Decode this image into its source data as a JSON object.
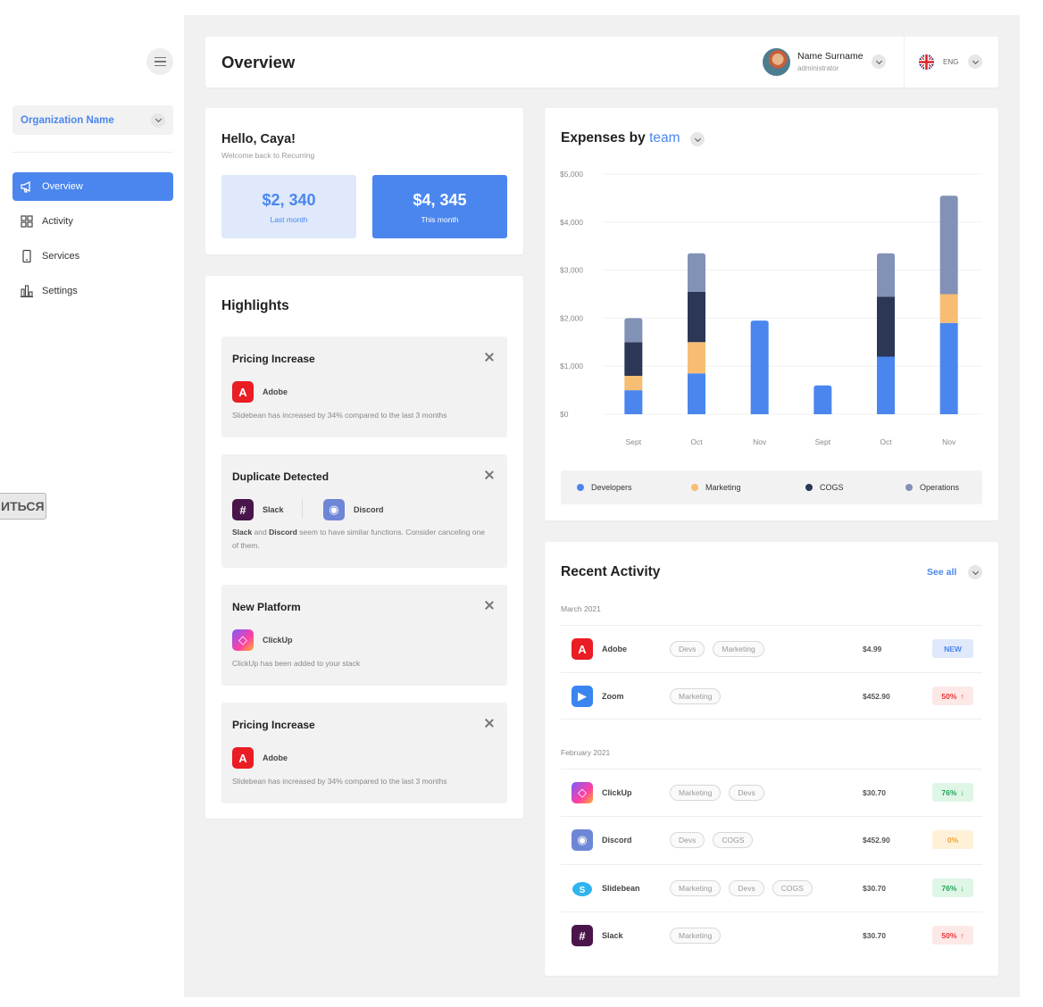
{
  "sidebar": {
    "org_name": "Organization Name",
    "items": [
      {
        "label": "Overview",
        "icon": "megaphone-icon",
        "active": true
      },
      {
        "label": "Activity",
        "icon": "grid-icon",
        "active": false
      },
      {
        "label": "Services",
        "icon": "tablet-icon",
        "active": false
      },
      {
        "label": "Settings",
        "icon": "bars-icon",
        "active": false
      }
    ],
    "ghost_button": "ИТЬСЯ"
  },
  "header": {
    "title": "Overview",
    "user_name": "Name Surname",
    "user_role": "administrator",
    "language": "ENG"
  },
  "hello": {
    "greeting": "Hello, Caya!",
    "subtitle": "Welcome back to Recurring",
    "last_value": "$2, 340",
    "last_label": "Last month",
    "this_value": "$4, 345",
    "this_label": "This month"
  },
  "highlights": {
    "title": "Highlights",
    "items": [
      {
        "title": "Pricing Increase",
        "app": "Adobe",
        "desc": "Slidebean has increased by 34% compared to the last 3 months"
      },
      {
        "title": "Duplicate Detected",
        "app": "Slack",
        "app2": "Discord",
        "desc_b1": "Slack",
        "desc_mid": " and ",
        "desc_b2": "Discord",
        "desc_rest": " seem to have similar functions. Consider canceling one of them."
      },
      {
        "title": "New Platform",
        "app": "ClickUp",
        "desc": "ClickUp has been added to your stack"
      },
      {
        "title": "Pricing Increase",
        "app": "Adobe",
        "desc": "Slidebean has increased by 34% compared to the last 3 months"
      }
    ]
  },
  "expenses": {
    "title_prefix": "Expenses by",
    "title_accent": "team"
  },
  "chart_data": {
    "type": "bar",
    "stacked": true,
    "categories": [
      "Sept",
      "Oct",
      "Nov",
      "Sept",
      "Oct",
      "Nov"
    ],
    "series": [
      {
        "name": "Developers",
        "color": "#4a86ee",
        "values": [
          500,
          850,
          1950,
          600,
          1200,
          1900
        ]
      },
      {
        "name": "Marketing",
        "color": "#f7bd72",
        "values": [
          300,
          650,
          0,
          0,
          0,
          600
        ]
      },
      {
        "name": "COGS",
        "color": "#2c3756",
        "values": [
          700,
          1050,
          0,
          0,
          1250,
          0
        ]
      },
      {
        "name": "Operations",
        "color": "#8291b6",
        "values": [
          500,
          800,
          0,
          0,
          900,
          2050
        ]
      }
    ],
    "y_ticks": [
      "$5,000",
      "$4,000",
      "$3,000",
      "$2,000",
      "$1,000",
      "$0"
    ],
    "ylim": [
      0,
      5000
    ],
    "grid": true,
    "legend_placement": "bottom"
  },
  "activity": {
    "title": "Recent Activity",
    "see_all": "See all",
    "groups": [
      {
        "month": "March 2021",
        "rows": [
          {
            "app": "Adobe",
            "icon": "adobe-icon",
            "tags": [
              "Devs",
              "Marketing"
            ],
            "price": "$4.99",
            "badge": "NEW",
            "kind": "new"
          },
          {
            "app": "Zoom",
            "icon": "zoom-icon",
            "tags": [
              "Marketing"
            ],
            "price": "$452.90",
            "badge": "50%",
            "kind": "up"
          }
        ]
      },
      {
        "month": "February 2021",
        "rows": [
          {
            "app": "ClickUp",
            "icon": "clickup-icon",
            "tags": [
              "Marketing",
              "Devs"
            ],
            "price": "$30.70",
            "badge": "76%",
            "kind": "down"
          },
          {
            "app": "Discord",
            "icon": "discord-icon",
            "tags": [
              "Devs",
              "COGS"
            ],
            "price": "$452.90",
            "badge": "0%",
            "kind": "zero"
          },
          {
            "app": "Slidebean",
            "icon": "slidebean-icon",
            "tags": [
              "Marketing",
              "Devs",
              "COGS"
            ],
            "price": "$30.70",
            "badge": "76%",
            "kind": "down"
          },
          {
            "app": "Slack",
            "icon": "slack-icon",
            "tags": [
              "Marketing"
            ],
            "price": "$30.70",
            "badge": "50%",
            "kind": "up"
          }
        ]
      }
    ]
  }
}
